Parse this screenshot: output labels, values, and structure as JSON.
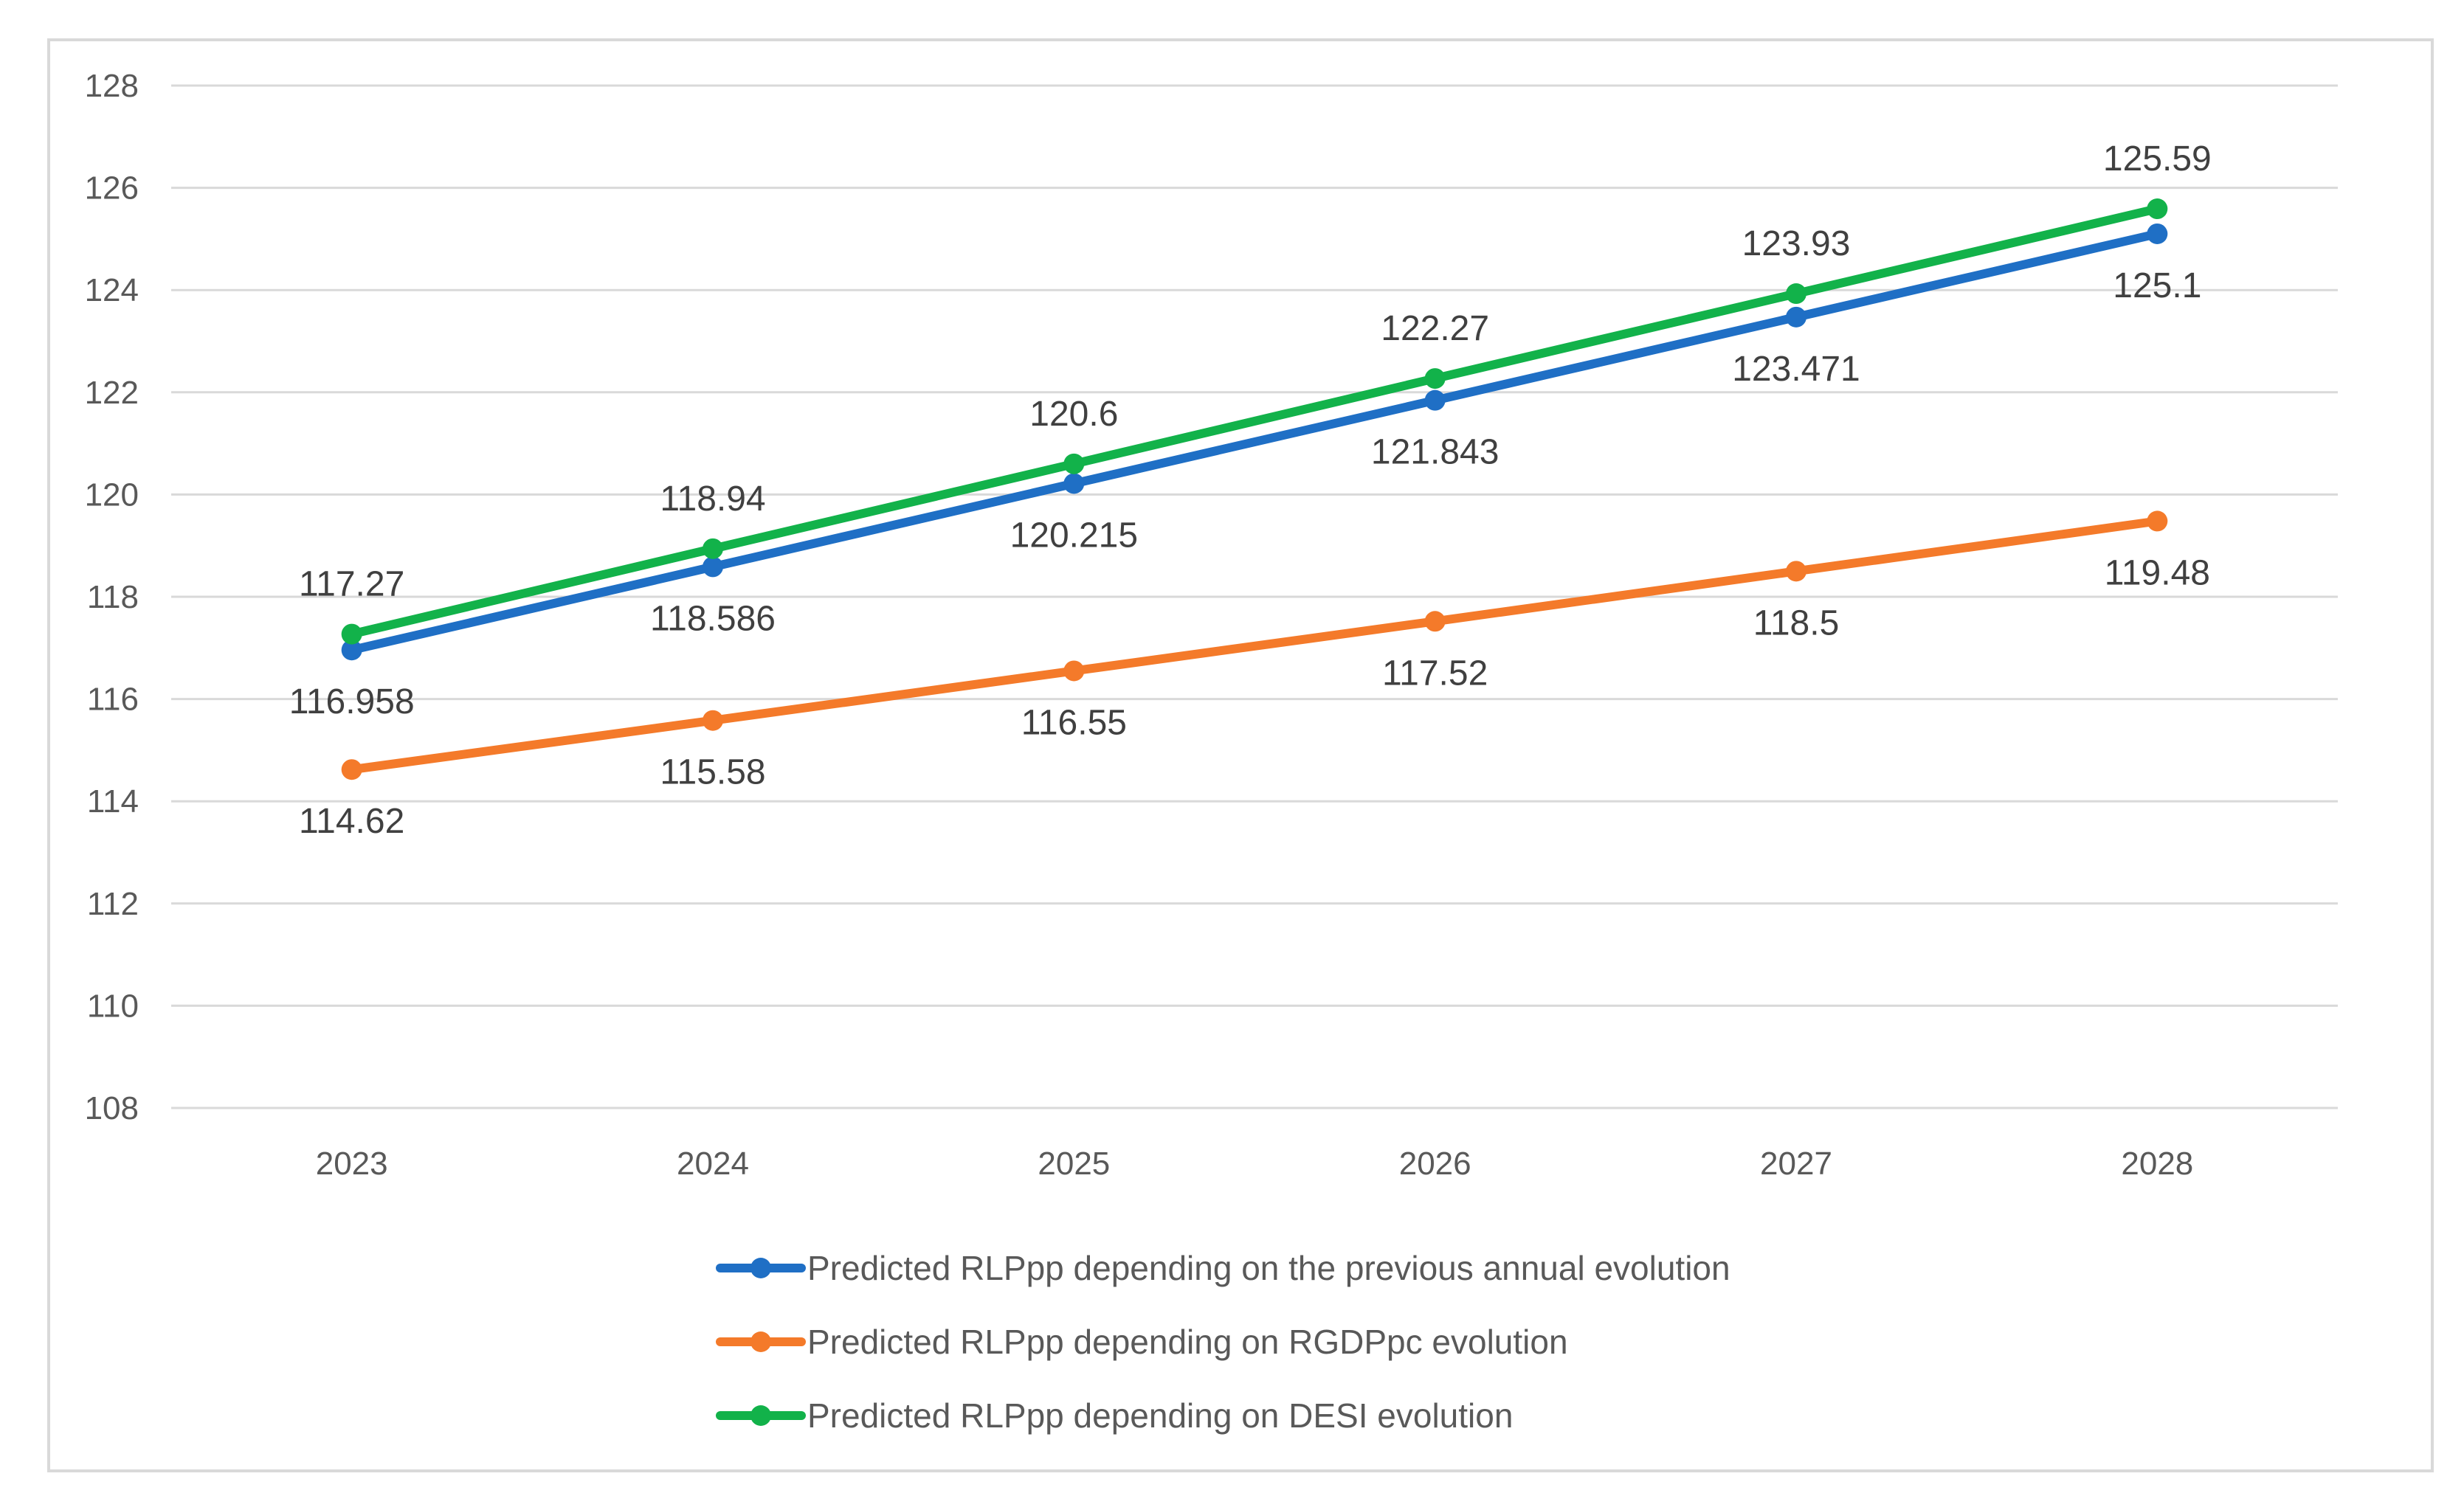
{
  "chart_data": {
    "type": "line",
    "title": "",
    "xlabel": "",
    "ylabel": "",
    "categories": [
      "2023",
      "2024",
      "2025",
      "2026",
      "2027",
      "2028"
    ],
    "ylim": [
      108,
      128
    ],
    "yticks": [
      108,
      110,
      112,
      114,
      116,
      118,
      120,
      122,
      124,
      126,
      128
    ],
    "grid": true,
    "legend_position": "bottom",
    "series": [
      {
        "name": "Predicted RLPpp depending on the previous annual evolution",
        "color": "#1f6fc5",
        "values": [
          116.958,
          118.586,
          120.215,
          121.843,
          123.471,
          125.1
        ],
        "labels": [
          "116.958",
          "118.586",
          "120.215",
          "121.843",
          "123.471",
          "125.1"
        ],
        "label_position": "below"
      },
      {
        "name": "Predicted RLPpp depending on RGDPpc evolution",
        "color": "#f47a2a",
        "values": [
          114.62,
          115.58,
          116.55,
          117.52,
          118.5,
          119.48
        ],
        "labels": [
          "114.62",
          "115.58",
          "116.55",
          "117.52",
          "118.5",
          "119.48"
        ],
        "label_position": "below"
      },
      {
        "name": "Predicted RLPpp depending on DESI evolution",
        "color": "#12b24a",
        "values": [
          117.27,
          118.94,
          120.6,
          122.27,
          123.93,
          125.59
        ],
        "labels": [
          "117.27",
          "118.94",
          "120.6",
          "122.27",
          "123.93",
          "125.59"
        ],
        "label_position": "above"
      }
    ]
  }
}
